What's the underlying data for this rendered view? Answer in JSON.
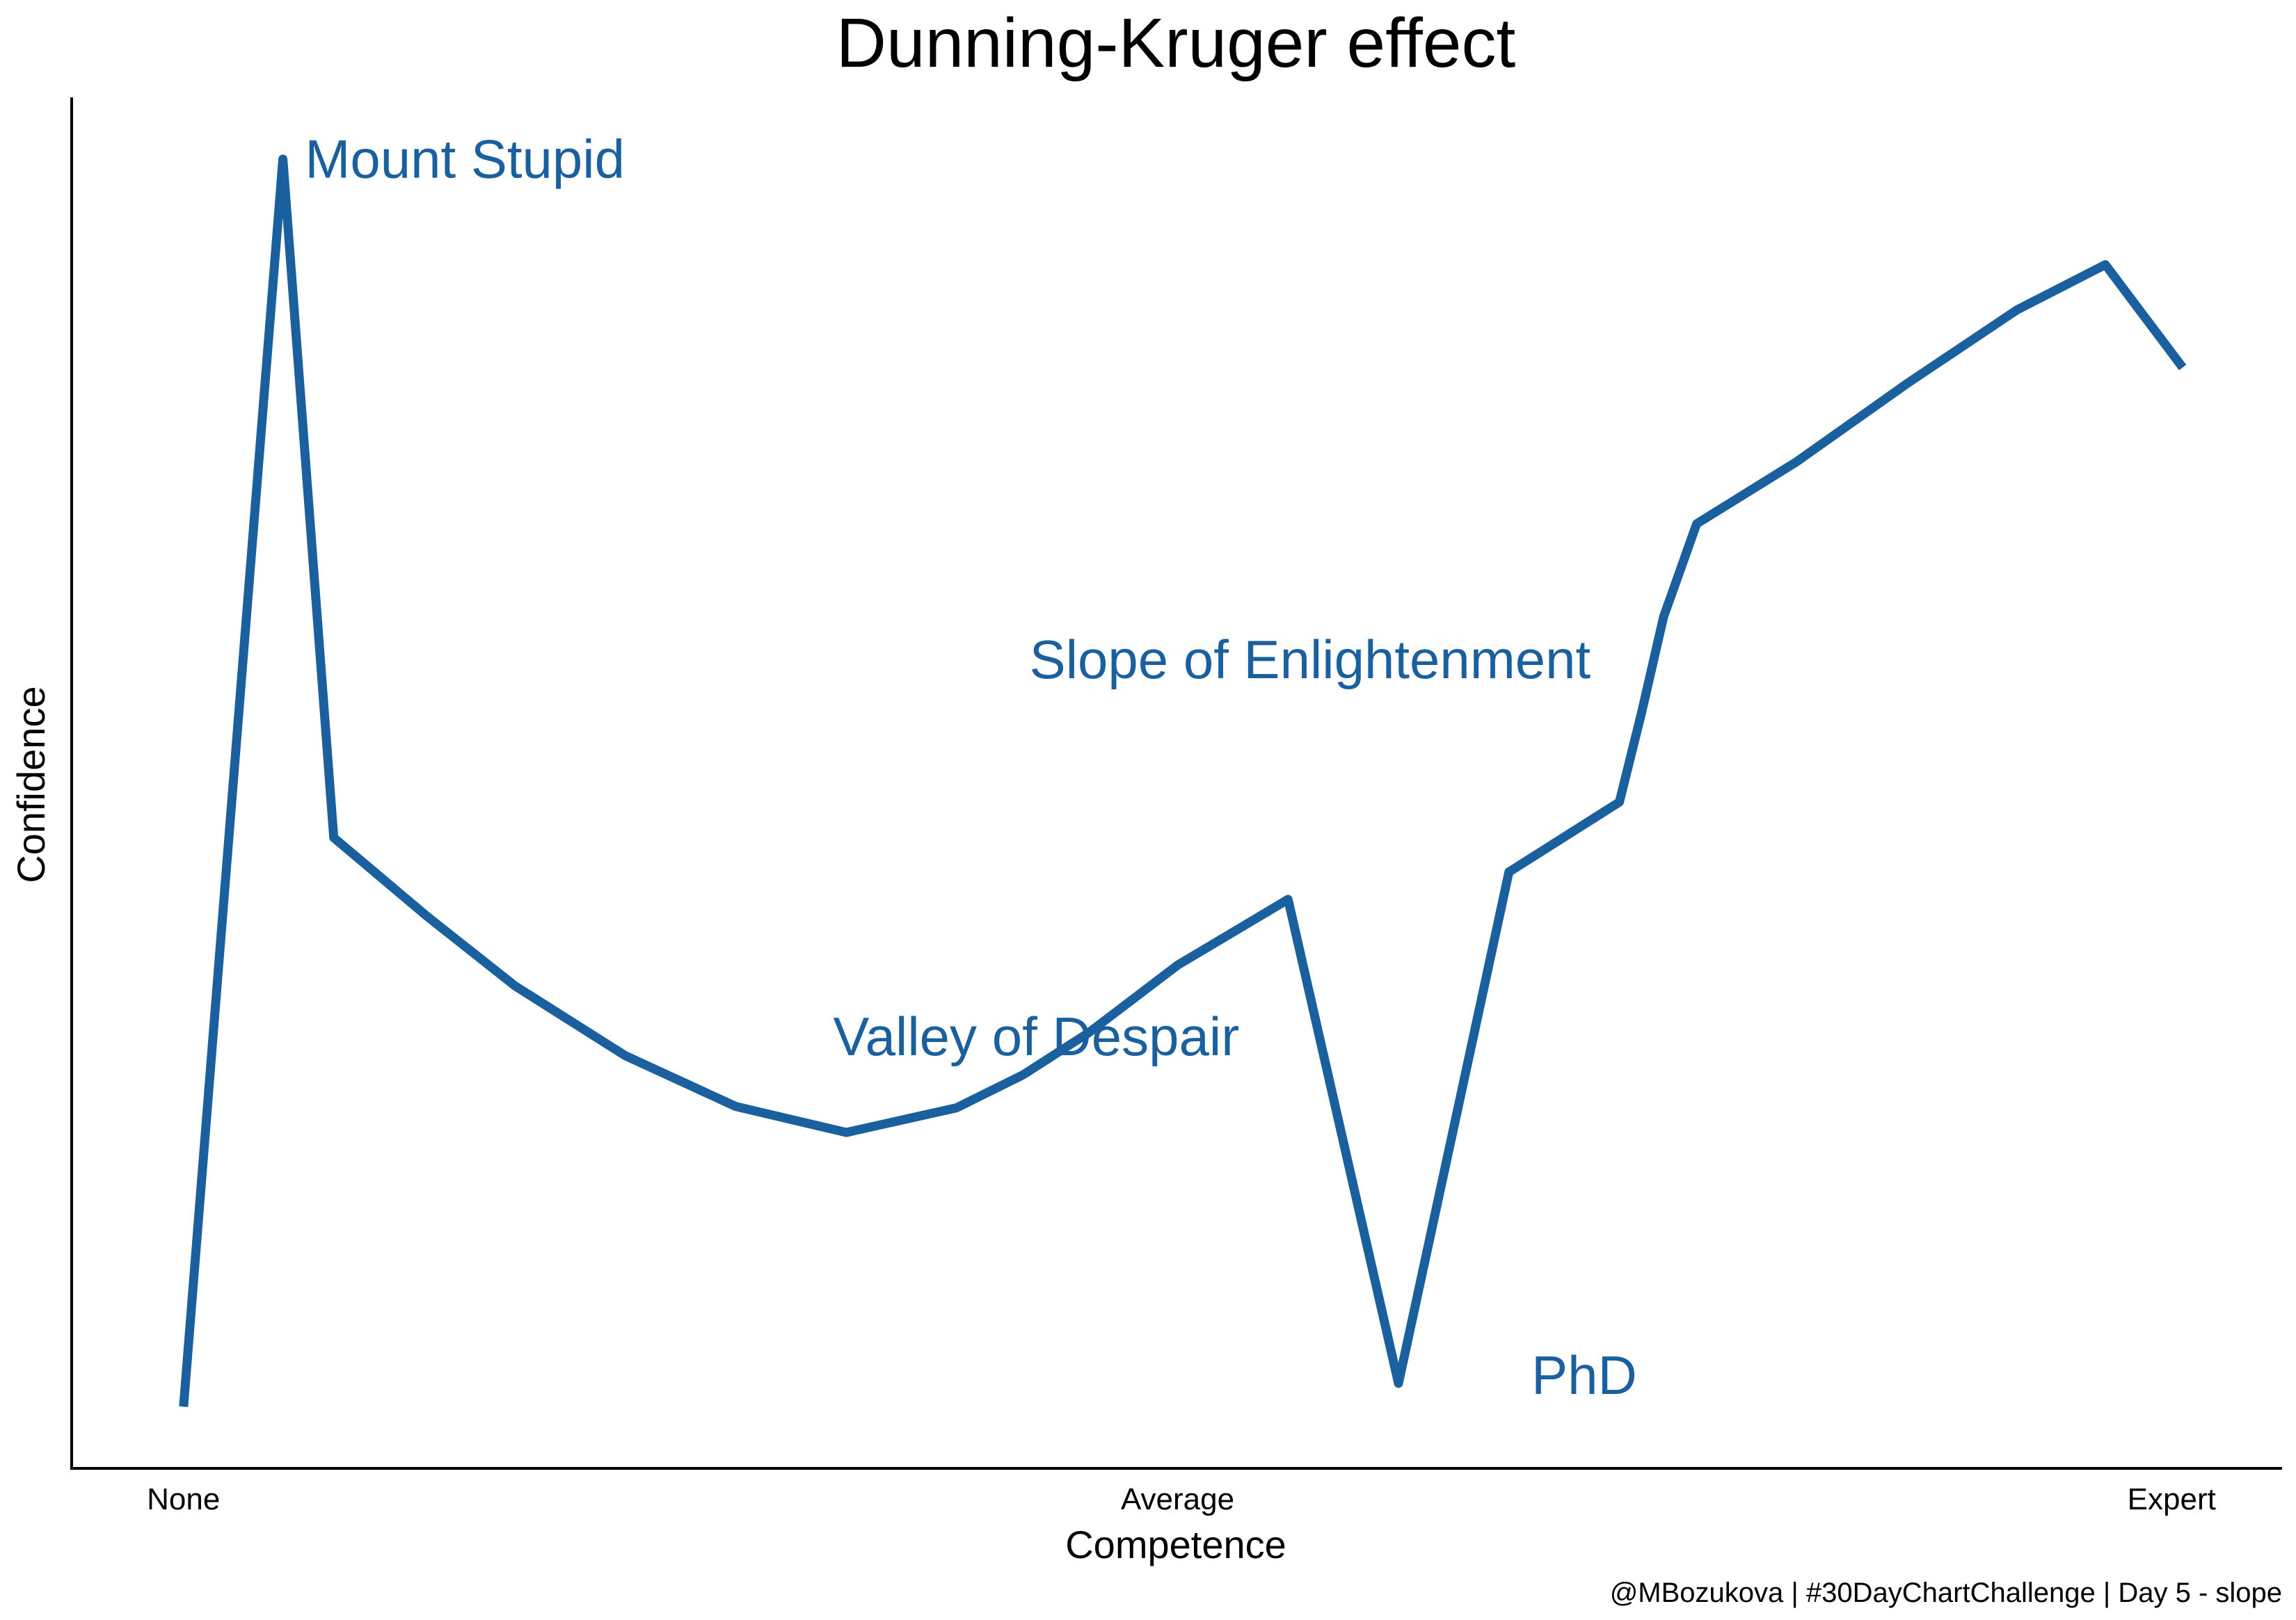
{
  "colors": {
    "series": "#1a5f9e",
    "annotation": "#1a5f9e",
    "axis": "#000000",
    "background": "#ffffff"
  },
  "chart_data": {
    "type": "line",
    "title": "Dunning-Kruger effect",
    "xlabel": "Competence",
    "ylabel": "Confidence",
    "caption": "@MBozukova | #30DayChartChallenge | Day 5 - slope",
    "xlim": [
      0,
      100
    ],
    "ylim": [
      0,
      100
    ],
    "x_ticks": [
      {
        "value": 5,
        "label": "None"
      },
      {
        "value": 50,
        "label": "Average"
      },
      {
        "value": 95,
        "label": "Expert"
      }
    ],
    "y_ticks": [],
    "grid": false,
    "legend": "none",
    "series": [
      {
        "color": "#1a5f9e",
        "x": [
          5,
          9.5,
          11.8,
          16,
          20,
          25,
          30,
          35,
          40,
          43,
          46,
          50,
          55,
          60,
          65,
          70,
          71,
          72,
          73.5,
          78,
          83,
          88,
          92,
          95.5
        ],
        "y": [
          4.5,
          95.5,
          46,
          40.3,
          35.2,
          30.1,
          26.4,
          24.5,
          26.3,
          28.7,
          31.8,
          36.7,
          41.5,
          6.2,
          43.5,
          48.6,
          55.1,
          62.1,
          68.9,
          73.4,
          79.1,
          84.5,
          87.8,
          80.3
        ]
      }
    ],
    "annotations": [
      {
        "text": "Mount Stupid",
        "x": 10.5,
        "y": 95.5,
        "anchor": "start"
      },
      {
        "text": "Slope of Enlightenment",
        "x": 68.7,
        "y": 59,
        "anchor": "end"
      },
      {
        "text": "Valley of Despair",
        "x": 43.6,
        "y": 31.5,
        "anchor": "middle"
      },
      {
        "text": "PhD",
        "x": 70.8,
        "y": 6.8,
        "anchor": "end"
      }
    ]
  }
}
